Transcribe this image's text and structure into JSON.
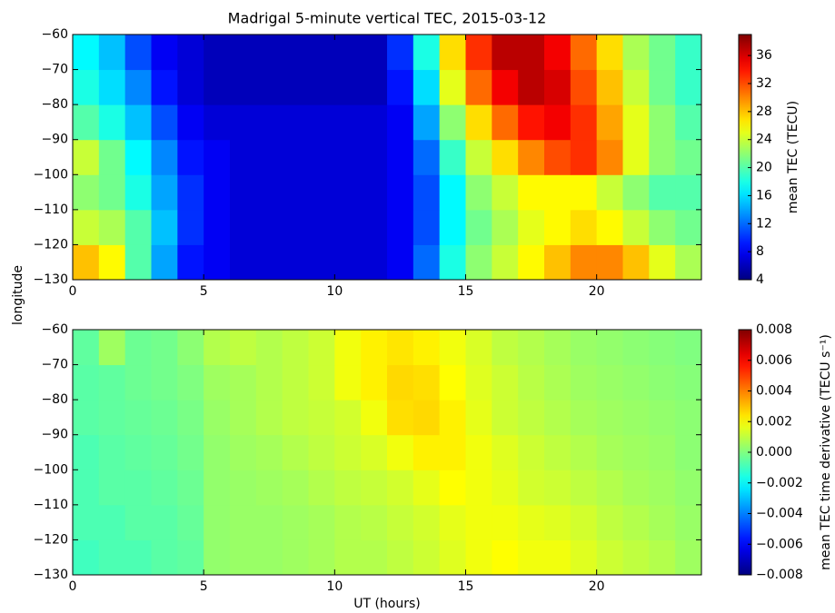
{
  "chart_data": [
    {
      "type": "heatmap",
      "title": "Madrigal 5-minute vertical TEC, 2015-03-12",
      "ylabel": "longitude",
      "colormap": "jet",
      "xbins": [
        0,
        1,
        2,
        3,
        4,
        5,
        6,
        7,
        8,
        9,
        10,
        11,
        12,
        13,
        14,
        15,
        16,
        17,
        18,
        19,
        20,
        21,
        22,
        23,
        24
      ],
      "ybins": [
        -130,
        -120,
        -110,
        -100,
        -90,
        -80,
        -70,
        -60
      ],
      "z": [
        [
          28,
          26,
          20,
          14,
          9,
          8,
          7,
          7,
          7,
          7,
          7,
          7,
          8,
          12,
          18,
          22,
          24,
          26,
          28,
          30,
          30,
          28,
          25,
          23
        ],
        [
          24,
          23,
          20,
          15,
          10,
          8,
          7,
          7,
          7,
          7,
          7,
          7,
          8,
          11,
          17,
          21,
          23,
          25,
          26,
          27,
          26,
          24,
          22,
          21
        ],
        [
          22,
          21,
          18,
          14,
          10,
          8,
          7,
          7,
          7,
          7,
          7,
          7,
          8,
          11,
          17,
          22,
          24,
          26,
          26,
          26,
          24,
          22,
          20,
          20
        ],
        [
          24,
          21,
          17,
          13,
          9,
          8,
          7,
          7,
          7,
          7,
          7,
          7,
          8,
          12,
          19,
          24,
          27,
          30,
          32,
          33,
          30,
          25,
          22,
          21
        ],
        [
          20,
          18,
          15,
          11,
          8,
          7,
          7,
          7,
          7,
          7,
          7,
          7,
          8,
          14,
          22,
          27,
          31,
          34,
          35,
          33,
          29,
          25,
          22,
          20
        ],
        [
          18,
          16,
          13,
          9,
          7,
          6,
          6,
          6,
          6,
          6,
          6,
          6,
          9,
          16,
          25,
          31,
          35,
          37,
          36,
          32,
          28,
          24,
          21,
          19
        ],
        [
          17,
          15,
          11,
          8,
          7,
          6,
          6,
          6,
          6,
          6,
          6,
          6,
          10,
          18,
          27,
          33,
          37,
          37,
          35,
          31,
          27,
          23,
          21,
          19
        ]
      ],
      "xlim": [
        0,
        24
      ],
      "xticks": [
        0,
        5,
        10,
        15,
        20
      ],
      "ylim": [
        -130,
        -60
      ],
      "yticks": [
        {
          "value": -130,
          "label": "−130"
        },
        {
          "value": -120,
          "label": "−120"
        },
        {
          "value": -110,
          "label": "−110"
        },
        {
          "value": -100,
          "label": "−100"
        },
        {
          "value": -90,
          "label": "−90"
        },
        {
          "value": -80,
          "label": "−80"
        },
        {
          "value": -70,
          "label": "−70"
        },
        {
          "value": -60,
          "label": "−60"
        }
      ],
      "clim": [
        4,
        39
      ],
      "cticks": [
        4,
        8,
        12,
        16,
        20,
        24,
        28,
        32,
        36
      ],
      "colorbar_label": "mean TEC (TECU)"
    },
    {
      "type": "heatmap",
      "xlabel": "UT (hours)",
      "colormap": "jet",
      "xbins": [
        0,
        1,
        2,
        3,
        4,
        5,
        6,
        7,
        8,
        9,
        10,
        11,
        12,
        13,
        14,
        15,
        16,
        17,
        18,
        19,
        20,
        21,
        22,
        23,
        24
      ],
      "ybins": [
        -130,
        -120,
        -110,
        -100,
        -90,
        -80,
        -70,
        -60
      ],
      "z": [
        [
          -0.001,
          -0.0008,
          -0.0008,
          -0.0006,
          -0.0005,
          0.0003,
          0.0004,
          0.0004,
          0.0005,
          0.0006,
          0.0008,
          0.0008,
          0.001,
          0.0012,
          0.0015,
          0.0018,
          0.002,
          0.0018,
          0.0018,
          0.0015,
          0.0012,
          0.001,
          0.0008,
          0.0005
        ],
        [
          -0.0008,
          -0.0008,
          -0.0006,
          -0.0006,
          -0.0004,
          0.0003,
          0.0004,
          0.0004,
          0.0005,
          0.0006,
          0.0008,
          0.0009,
          0.0011,
          0.0013,
          0.0016,
          0.0018,
          0.0018,
          0.0016,
          0.0015,
          0.0013,
          0.001,
          0.0008,
          0.0006,
          0.0004
        ],
        [
          -0.0008,
          -0.0006,
          -0.0006,
          -0.0005,
          -0.0003,
          0.0003,
          0.0004,
          0.0005,
          0.0006,
          0.0008,
          0.001,
          0.0011,
          0.0013,
          0.0016,
          0.002,
          0.0018,
          0.0016,
          0.0013,
          0.0012,
          0.001,
          0.0008,
          0.0006,
          0.0005,
          0.0003
        ],
        [
          -0.0008,
          -0.0006,
          -0.0005,
          -0.0004,
          -0.0002,
          0.0003,
          0.0005,
          0.0006,
          0.0008,
          0.001,
          0.0012,
          0.0014,
          0.0018,
          0.0022,
          0.0022,
          0.0018,
          0.0015,
          0.0012,
          0.001,
          0.0008,
          0.0006,
          0.0005,
          0.0004,
          0.0002
        ],
        [
          -0.0006,
          -0.0005,
          -0.0004,
          -0.0003,
          -0.0001,
          0.0004,
          0.0006,
          0.0008,
          0.001,
          0.0011,
          0.0013,
          0.0018,
          0.0025,
          0.0026,
          0.0022,
          0.0016,
          0.0012,
          0.001,
          0.0008,
          0.0006,
          0.0005,
          0.0004,
          0.0003,
          0.0002
        ],
        [
          -0.0006,
          -0.0005,
          -0.0003,
          -0.0002,
          0,
          0.0005,
          0.0006,
          0.0008,
          0.001,
          0.0012,
          0.0018,
          0.0022,
          0.0026,
          0.0025,
          0.002,
          0.0015,
          0.0012,
          0.0009,
          0.0007,
          0.0005,
          0.0004,
          0.0003,
          0.0002,
          0.0001
        ],
        [
          -0.0005,
          0.0005,
          -0.0003,
          -0.0002,
          0.0002,
          0.0008,
          0.001,
          0.0008,
          0.001,
          0.0012,
          0.0018,
          0.0022,
          0.0024,
          0.0022,
          0.0018,
          0.0014,
          0.001,
          0.0008,
          0.0006,
          0.0004,
          0.0003,
          0.0002,
          0.0001,
          0
        ]
      ],
      "xlim": [
        0,
        24
      ],
      "xticks": [
        0,
        5,
        10,
        15,
        20
      ],
      "ylim": [
        -130,
        -60
      ],
      "yticks": [
        {
          "value": -130,
          "label": "−130"
        },
        {
          "value": -120,
          "label": "−120"
        },
        {
          "value": -110,
          "label": "−110"
        },
        {
          "value": -100,
          "label": "−100"
        },
        {
          "value": -90,
          "label": "−90"
        },
        {
          "value": -80,
          "label": "−80"
        },
        {
          "value": -70,
          "label": "−70"
        },
        {
          "value": -60,
          "label": "−60"
        }
      ],
      "clim": [
        -0.008,
        0.008
      ],
      "cticks": [
        {
          "value": -0.008,
          "label": "−0.008"
        },
        {
          "value": -0.006,
          "label": "−0.006"
        },
        {
          "value": -0.004,
          "label": "−0.004"
        },
        {
          "value": -0.002,
          "label": "−0.002"
        },
        {
          "value": 0,
          "label": "0.000"
        },
        0.002,
        0.004,
        0.006,
        0.008
      ],
      "colorbar_label": "mean TEC time derivative (TECU s⁻¹)"
    }
  ]
}
